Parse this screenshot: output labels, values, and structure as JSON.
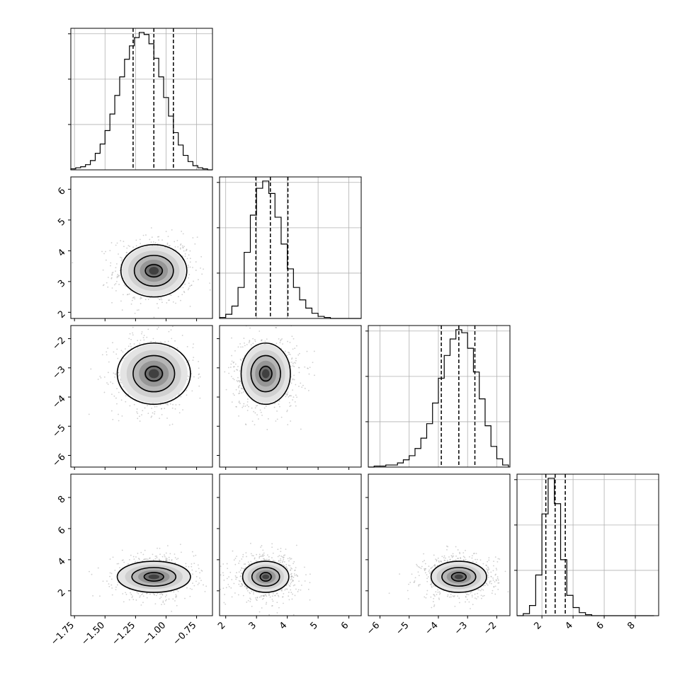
{
  "chart_data": {
    "type": "corner",
    "parameters": [
      {
        "range": [
          -1.78,
          -0.62
        ],
        "ticks": [
          -1.75,
          -1.5,
          -1.25,
          -1.0,
          -0.75
        ],
        "tick_labels": [
          "−1.75",
          "−1.50",
          "−1.25",
          "−1.00",
          "−0.75"
        ],
        "mean": -1.1,
        "sd": 0.15,
        "quantiles": [
          -1.27,
          -1.1,
          -0.94
        ]
      },
      {
        "range": [
          1.8,
          6.4
        ],
        "ticks": [
          2,
          3,
          4,
          5,
          6
        ],
        "tick_labels": [
          "2",
          "3",
          "4",
          "5",
          "6"
        ],
        "mean": 3.5,
        "sd": 0.5,
        "quantiles": [
          2.98,
          3.45,
          4.02
        ]
      },
      {
        "range": [
          -6.4,
          -1.55
        ],
        "ticks": [
          -6,
          -5,
          -4,
          -3,
          -2
        ],
        "tick_labels": [
          "−6",
          "−5",
          "−4",
          "−3",
          "−2"
        ],
        "mean": -3.3,
        "sd": 0.6,
        "quantiles": [
          -3.9,
          -3.3,
          -2.75
        ]
      },
      {
        "range": [
          0.4,
          9.5
        ],
        "ticks": [
          2,
          4,
          6,
          8
        ],
        "tick_labels": [
          "2",
          "4",
          "6",
          "8"
        ],
        "mean": 2.9,
        "sd": 0.65,
        "quantiles": [
          2.25,
          2.85,
          3.5
        ]
      }
    ],
    "histograms": [
      {
        "param": 0,
        "bins": [
          -1.78,
          -1.74,
          -1.7,
          -1.66,
          -1.62,
          -1.58,
          -1.54,
          -1.5,
          -1.46,
          -1.42,
          -1.38,
          -1.34,
          -1.3,
          -1.26,
          -1.22,
          -1.18,
          -1.14,
          -1.1,
          -1.06,
          -1.02,
          -0.98,
          -0.94,
          -0.9,
          -0.86,
          -0.82,
          -0.78,
          -0.74,
          -0.7,
          -0.66,
          -0.62
        ],
        "counts": [
          1,
          2,
          3,
          5,
          9,
          16,
          25,
          38,
          54,
          72,
          90,
          107,
          120,
          128,
          133,
          131,
          122,
          108,
          90,
          70,
          52,
          36,
          24,
          14,
          8,
          4,
          2,
          1,
          0
        ]
      },
      {
        "param": 1,
        "bins": [
          1.8,
          2.0,
          2.2,
          2.4,
          2.6,
          2.8,
          3.0,
          3.2,
          3.4,
          3.6,
          3.8,
          4.0,
          4.2,
          4.4,
          4.6,
          4.8,
          5.0,
          5.2,
          5.4,
          5.6,
          5.8,
          6.0,
          6.2,
          6.4
        ],
        "counts": [
          1,
          4,
          12,
          30,
          64,
          100,
          126,
          133,
          121,
          98,
          72,
          48,
          30,
          18,
          10,
          5,
          2,
          1,
          0,
          0,
          0,
          0,
          0
        ]
      },
      {
        "param": 2,
        "bins": [
          -6.4,
          -6.2,
          -6.0,
          -5.8,
          -5.6,
          -5.4,
          -5.2,
          -5.0,
          -4.8,
          -4.6,
          -4.4,
          -4.2,
          -4.0,
          -3.8,
          -3.6,
          -3.4,
          -3.2,
          -3.0,
          -2.8,
          -2.6,
          -2.4,
          -2.2,
          -2.0,
          -1.8,
          -1.6
        ],
        "counts": [
          0,
          1,
          1,
          2,
          2,
          4,
          7,
          11,
          18,
          28,
          42,
          62,
          86,
          108,
          124,
          133,
          130,
          115,
          92,
          66,
          40,
          20,
          8,
          2
        ]
      },
      {
        "param": 3,
        "bins": [
          0.4,
          0.8,
          1.2,
          1.6,
          2.0,
          2.4,
          2.8,
          3.2,
          3.6,
          4.0,
          4.4,
          4.8,
          5.2,
          5.6,
          6.0,
          6.4,
          6.8,
          7.2,
          7.6,
          8.0,
          8.4,
          8.8,
          9.2
        ],
        "counts": [
          0,
          2,
          10,
          40,
          100,
          135,
          110,
          55,
          20,
          8,
          3,
          1,
          0,
          0,
          0,
          0,
          0,
          0,
          0,
          0,
          0,
          0
        ]
      }
    ],
    "scatter_panels": [
      {
        "x": 0,
        "y": 1,
        "center": [
          -1.1,
          3.35
        ],
        "contour_radii": [
          [
            0.07,
            0.2
          ],
          [
            0.16,
            0.5
          ],
          [
            0.27,
            0.85
          ]
        ]
      },
      {
        "x": 0,
        "y": 2,
        "center": [
          -1.1,
          -3.2
        ],
        "contour_radii": [
          [
            0.07,
            0.25
          ],
          [
            0.17,
            0.62
          ],
          [
            0.3,
            1.05
          ]
        ]
      },
      {
        "x": 1,
        "y": 2,
        "center": [
          3.3,
          -3.2
        ],
        "contour_radii": [
          [
            0.2,
            0.25
          ],
          [
            0.48,
            0.62
          ],
          [
            0.8,
            1.05
          ]
        ]
      },
      {
        "x": 0,
        "y": 3,
        "center": [
          -1.1,
          2.9
        ],
        "contour_radii": [
          [
            0.08,
            0.28
          ],
          [
            0.18,
            0.6
          ],
          [
            0.3,
            1.0
          ]
        ]
      },
      {
        "x": 1,
        "y": 3,
        "center": [
          3.3,
          2.9
        ],
        "contour_radii": [
          [
            0.18,
            0.28
          ],
          [
            0.45,
            0.6
          ],
          [
            0.75,
            1.0
          ]
        ]
      },
      {
        "x": 2,
        "y": 3,
        "center": [
          -3.3,
          2.9
        ],
        "contour_radii": [
          [
            0.25,
            0.28
          ],
          [
            0.58,
            0.6
          ],
          [
            0.95,
            1.0
          ]
        ]
      }
    ],
    "grid": true
  }
}
